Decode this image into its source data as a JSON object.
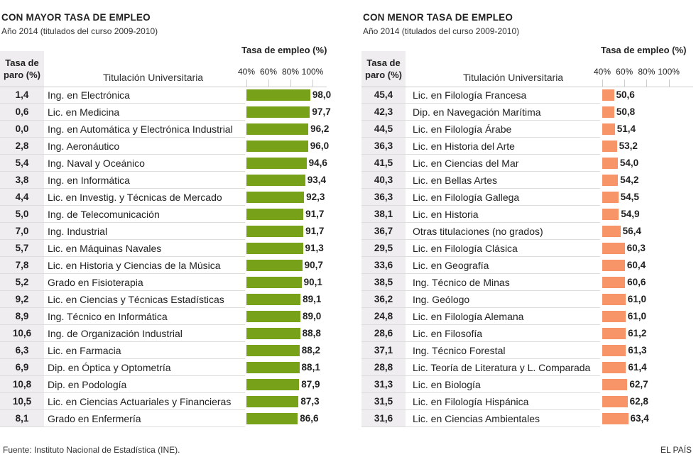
{
  "panels": [
    {
      "title": "CON MAYOR TASA DE EMPLEO",
      "subtitle": "Año 2014 (titulados del curso 2009-2010)",
      "col_paro": "Tasa de paro (%)",
      "col_paro_l1": "Tasa de",
      "col_paro_l2": "paro (%)",
      "col_titulacion": "Titulación Universitaria",
      "col_empleo": "Tasa de empleo (%)",
      "ticks": [
        "40%",
        "60%",
        "80%",
        "100%"
      ],
      "color": "#76a118",
      "rows": [
        [
          "1,4",
          "Ing. en Electrónica",
          "98,0"
        ],
        [
          "0,6",
          "Lic. en Medicina",
          "97,7"
        ],
        [
          "0,0",
          "Ing. en Automática y Electrónica Industrial",
          "96,2"
        ],
        [
          "2,8",
          "Ing. Aeronáutico",
          "96,0"
        ],
        [
          "5,4",
          "Ing. Naval y Oceánico",
          "94,6"
        ],
        [
          "3,8",
          "Ing. en Informática",
          "93,4"
        ],
        [
          "4,4",
          "Lic. en Investig. y Técnicas de Mercado",
          "92,3"
        ],
        [
          "5,0",
          "Ing. de Telecomunicación",
          "91,7"
        ],
        [
          "7,0",
          "Ing. Industrial",
          "91,7"
        ],
        [
          "5,7",
          "Lic. en Máquinas Navales",
          "91,3"
        ],
        [
          "7,8",
          "Lic. en Historia y Ciencias de la Música",
          "90,7"
        ],
        [
          "5,2",
          "Grado en Fisioterapia",
          "90,1"
        ],
        [
          "9,2",
          "Lic. en Ciencias y Técnicas Estadísticas",
          "89,1"
        ],
        [
          "8,9",
          "Ing. Técnico en Informática",
          "89,0"
        ],
        [
          "10,6",
          "Ing. de Organización Industrial",
          "88,8"
        ],
        [
          "6,3",
          "Lic. en Farmacia",
          "88,2"
        ],
        [
          "6,9",
          "Dip. en Óptica y Optometría",
          "88,1"
        ],
        [
          "10,8",
          "Dip. en Podología",
          "87,9"
        ],
        [
          "10,5",
          "Lic. en Ciencias Actuariales y Financieras",
          "87,3"
        ],
        [
          "8,1",
          "Grado en Enfermería",
          "86,6"
        ]
      ]
    },
    {
      "title": "CON MENOR TASA DE EMPLEO",
      "subtitle": "Año 2014 (titulados del curso 2009-2010)",
      "col_paro": "Tasa de paro (%)",
      "col_paro_l1": "Tasa de",
      "col_paro_l2": "paro (%)",
      "col_titulacion": "Titulación Universitaria",
      "col_empleo": "Tasa de empleo (%)",
      "ticks": [
        "40%",
        "60%",
        "80%",
        "100%"
      ],
      "color": "#f79468",
      "rows": [
        [
          "45,4",
          "Lic. en Filología Francesa",
          "50,6"
        ],
        [
          "42,3",
          "Dip. en Navegación Marítima",
          "50,8"
        ],
        [
          "44,5",
          "Lic. en Filología Árabe",
          "51,4"
        ],
        [
          "36,3",
          "Lic. en Historia del Arte",
          "53,2"
        ],
        [
          "41,5",
          "Lic. en Ciencias del Mar",
          "54,0"
        ],
        [
          "40,3",
          "Lic. en Bellas Artes",
          "54,2"
        ],
        [
          "36,3",
          "Lic. en Filología Gallega",
          "54,5"
        ],
        [
          "38,1",
          "Lic. en Historia",
          "54,9"
        ],
        [
          "36,7",
          "Otras titulaciones (no grados)",
          "56,4"
        ],
        [
          "29,5",
          "Lic. en Filología Clásica",
          "60,3"
        ],
        [
          "33,6",
          "Lic. en Geografía",
          "60,4"
        ],
        [
          "38,5",
          "Ing. Técnico de Minas",
          "60,6"
        ],
        [
          "36,2",
          "Ing. Geólogo",
          "61,0"
        ],
        [
          "24,8",
          "Lic. en Filología Alemana",
          "61,0"
        ],
        [
          "28,6",
          "Lic. en Filosofía",
          "61,2"
        ],
        [
          "37,1",
          "Ing. Técnico Forestal",
          "61,3"
        ],
        [
          "28,8",
          "Lic. Teoría de Literatura y L. Comparada",
          "61,4"
        ],
        [
          "31,3",
          "Lic. en Biología",
          "62,7"
        ],
        [
          "31,5",
          "Lic. en Filología Hispánica",
          "62,8"
        ],
        [
          "31,6",
          "Lic. en Ciencias Ambientales",
          "63,4"
        ]
      ]
    }
  ],
  "footer": {
    "source": "Fuente: Instituto Nacional de Estadística (INE).",
    "brand": "EL PAÍS"
  },
  "chart_data": [
    {
      "type": "bar",
      "title": "CON MAYOR TASA DE EMPLEO",
      "subtitle": "Año 2014 (titulados del curso 2009-2010)",
      "xlabel": "Tasa de empleo (%)",
      "xlim": [
        40,
        100
      ],
      "categories": [
        "Ing. en Electrónica",
        "Lic. en Medicina",
        "Ing. en Automática y Electrónica Industrial",
        "Ing. Aeronáutico",
        "Ing. Naval y Oceánico",
        "Ing. en Informática",
        "Lic. en Investig. y Técnicas de Mercado",
        "Ing. de Telecomunicación",
        "Ing. Industrial",
        "Lic. en Máquinas Navales",
        "Lic. en Historia y Ciencias de la Música",
        "Grado en Fisioterapia",
        "Lic. en Ciencias y Técnicas Estadísticas",
        "Ing. Técnico en Informática",
        "Ing. de Organización Industrial",
        "Lic. en Farmacia",
        "Dip. en Óptica y Optometría",
        "Dip. en Podología",
        "Lic. en Ciencias Actuariales y Financieras",
        "Grado en Enfermería"
      ],
      "values": [
        98.0,
        97.7,
        96.2,
        96.0,
        94.6,
        93.4,
        92.3,
        91.7,
        91.7,
        91.3,
        90.7,
        90.1,
        89.1,
        89.0,
        88.8,
        88.2,
        88.1,
        87.9,
        87.3,
        86.6
      ],
      "paro": [
        1.4,
        0.6,
        0.0,
        2.8,
        5.4,
        3.8,
        4.4,
        5.0,
        7.0,
        5.7,
        7.8,
        5.2,
        9.2,
        8.9,
        10.6,
        6.3,
        6.9,
        10.8,
        10.5,
        8.1
      ]
    },
    {
      "type": "bar",
      "title": "CON MENOR TASA DE EMPLEO",
      "subtitle": "Año 2014 (titulados del curso 2009-2010)",
      "xlabel": "Tasa de empleo (%)",
      "xlim": [
        40,
        100
      ],
      "categories": [
        "Lic. en Filología Francesa",
        "Dip. en Navegación Marítima",
        "Lic. en Filología Árabe",
        "Lic. en Historia del Arte",
        "Lic. en Ciencias del Mar",
        "Lic. en Bellas Artes",
        "Lic. en Filología Gallega",
        "Lic. en Historia",
        "Otras titulaciones (no grados)",
        "Lic. en Filología Clásica",
        "Lic. en Geografía",
        "Ing. Técnico de Minas",
        "Ing. Geólogo",
        "Lic. en Filología Alemana",
        "Lic. en Filosofía",
        "Ing. Técnico Forestal",
        "Lic. Teoría de Literatura y L. Comparada",
        "Lic. en Biología",
        "Lic. en Filología Hispánica",
        "Lic. en Ciencias Ambientales"
      ],
      "values": [
        50.6,
        50.8,
        51.4,
        53.2,
        54.0,
        54.2,
        54.5,
        54.9,
        56.4,
        60.3,
        60.4,
        60.6,
        61.0,
        61.0,
        61.2,
        61.3,
        61.4,
        62.7,
        62.8,
        63.4
      ],
      "paro": [
        45.4,
        42.3,
        44.5,
        36.3,
        41.5,
        40.3,
        36.3,
        38.1,
        36.7,
        29.5,
        33.6,
        38.5,
        36.2,
        24.8,
        28.6,
        37.1,
        28.8,
        31.3,
        31.5,
        31.6
      ]
    }
  ]
}
